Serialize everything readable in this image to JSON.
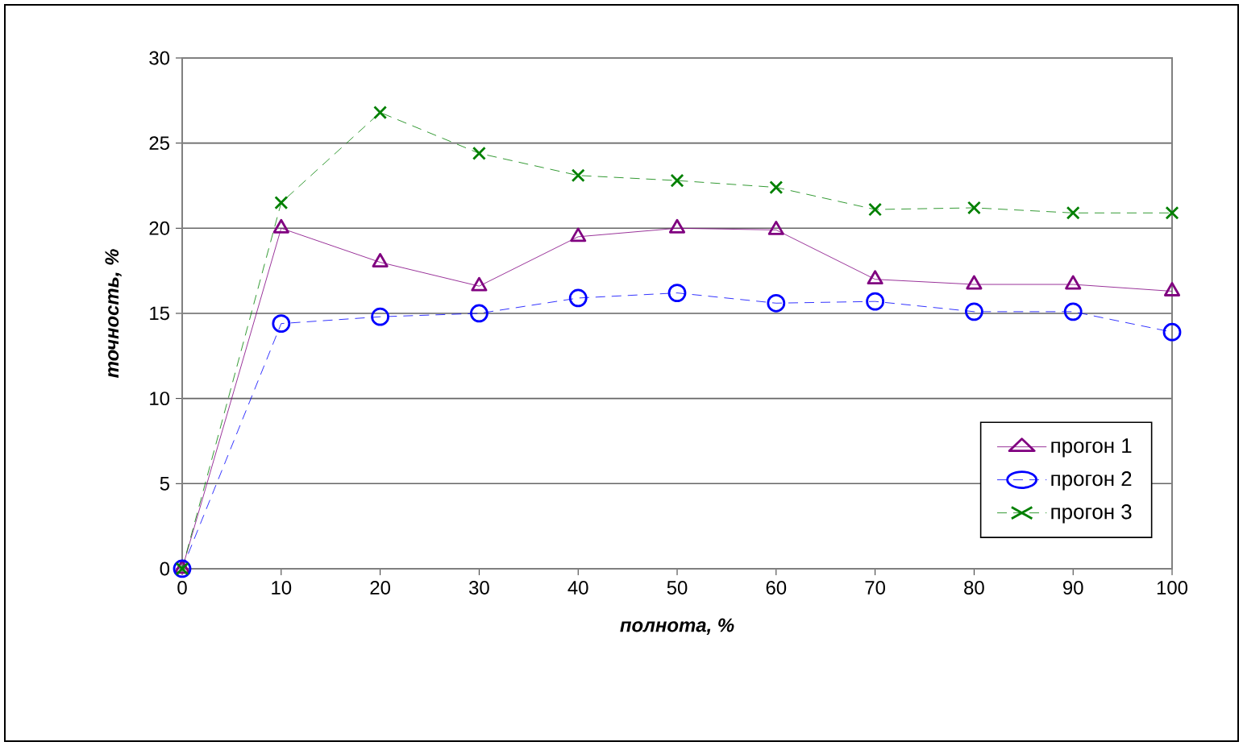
{
  "chart_data": {
    "type": "line",
    "xlabel": "полнота, %",
    "ylabel": "точность, %",
    "x": [
      0,
      10,
      20,
      30,
      40,
      50,
      60,
      70,
      80,
      90,
      100
    ],
    "xlim": [
      0,
      100
    ],
    "xticks": [
      0,
      10,
      20,
      30,
      40,
      50,
      60,
      70,
      80,
      90,
      100
    ],
    "ylim": [
      0,
      30
    ],
    "yticks": [
      0,
      5,
      10,
      15,
      20,
      25,
      30
    ],
    "grid": "y",
    "legend": "bottom right",
    "series": [
      {
        "name": "прогон 1",
        "color": "#800080",
        "marker": "triangle",
        "line_style": "solid",
        "values": [
          0,
          20.0,
          18.0,
          16.6,
          19.5,
          20.0,
          19.9,
          17.0,
          16.7,
          16.7,
          16.3
        ]
      },
      {
        "name": "прогон 2",
        "color": "#0000ff",
        "marker": "circle",
        "line_style": "dashed",
        "values": [
          0,
          14.4,
          14.8,
          15.0,
          15.9,
          16.2,
          15.6,
          15.7,
          15.1,
          15.1,
          13.9
        ]
      },
      {
        "name": "прогон 3",
        "color": "#008000",
        "marker": "cross",
        "line_style": "dashed",
        "values": [
          0,
          21.5,
          26.8,
          24.4,
          23.1,
          22.8,
          22.4,
          21.1,
          21.2,
          20.9,
          20.9
        ]
      }
    ]
  }
}
